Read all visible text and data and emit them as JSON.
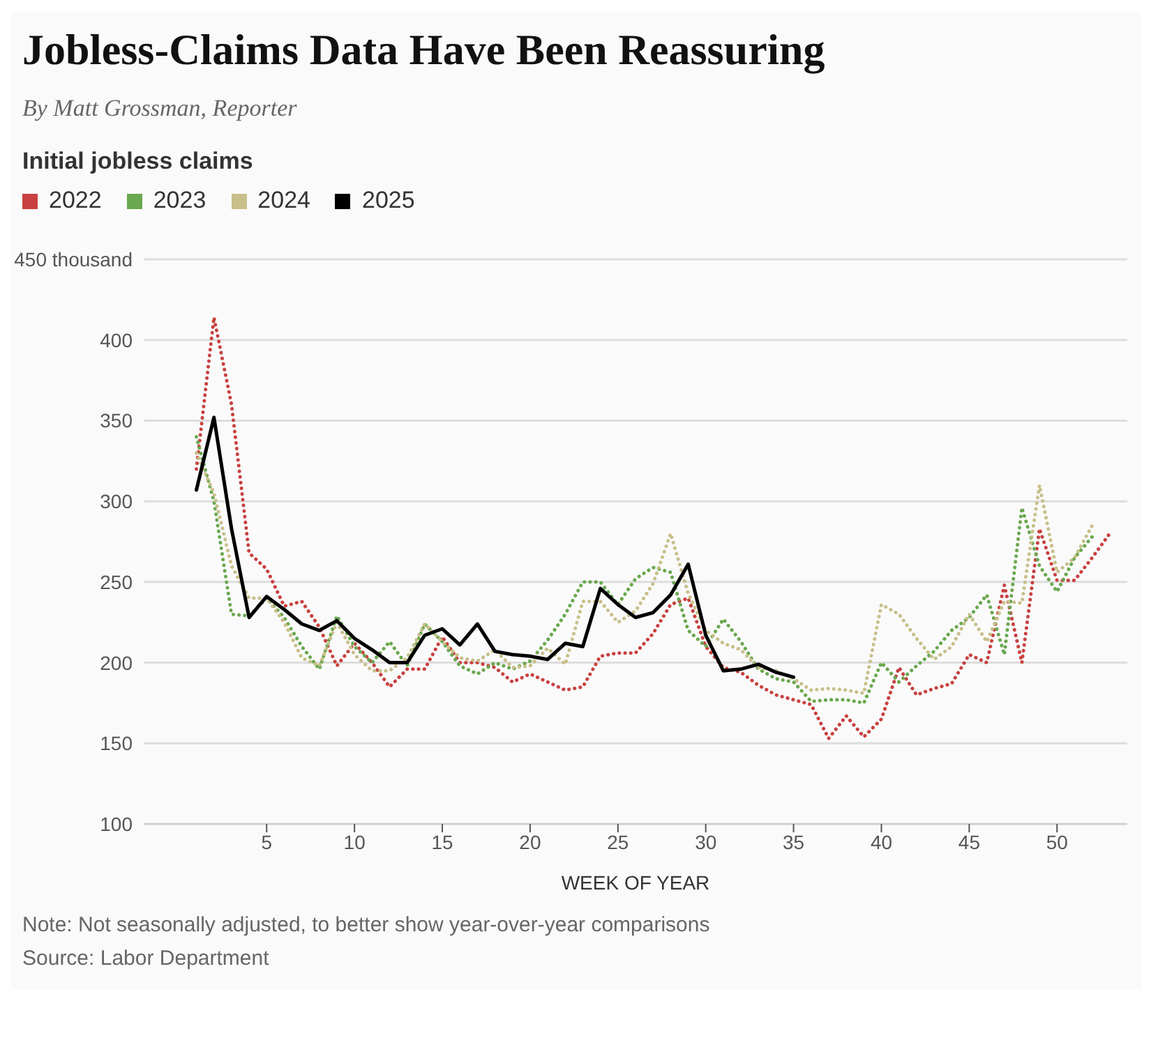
{
  "chart_data": {
    "type": "line",
    "title": "Jobless-Claims Data Have Been Reassuring",
    "subtitle": "By Matt Grossman, Reporter",
    "ylabel": "Initial jobless claims",
    "xlabel": "WEEK OF YEAR",
    "annotations": [
      "Note: Not seasonally adjusted, to better show year-over-year comparisons",
      "Source: Labor Department"
    ],
    "x": [
      1,
      2,
      3,
      4,
      5,
      6,
      7,
      8,
      9,
      10,
      11,
      12,
      13,
      14,
      15,
      16,
      17,
      18,
      19,
      20,
      21,
      22,
      23,
      24,
      25,
      26,
      27,
      28,
      29,
      30,
      31,
      32,
      33,
      34,
      35,
      36,
      37,
      38,
      39,
      40,
      41,
      42,
      43,
      44,
      45,
      46,
      47,
      48,
      49,
      50,
      51,
      52,
      53
    ],
    "series": [
      {
        "name": "2022",
        "color": "#c94040",
        "line_style": "dotted",
        "values": [
          320,
          414,
          360,
          268,
          258,
          235,
          238,
          222,
          198,
          212,
          200,
          185,
          196,
          196,
          216,
          200,
          200,
          197,
          188,
          193,
          188,
          183,
          185,
          204,
          206,
          206,
          218,
          236,
          240,
          210,
          197,
          194,
          186,
          180,
          177,
          174,
          153,
          167,
          154,
          165,
          197,
          180,
          184,
          187,
          205,
          200,
          248,
          200,
          283,
          251,
          251,
          265,
          280
        ]
      },
      {
        "name": "2023",
        "color": "#6aa84f",
        "line_style": "dotted",
        "values": [
          340,
          300,
          230,
          229,
          240,
          228,
          210,
          196,
          229,
          210,
          200,
          213,
          198,
          224,
          213,
          198,
          193,
          200,
          196,
          201,
          214,
          230,
          250,
          250,
          236,
          252,
          259,
          256,
          220,
          210,
          227,
          213,
          196,
          190,
          188,
          176,
          177,
          177,
          175,
          200,
          188,
          198,
          207,
          220,
          228,
          242,
          205,
          296,
          260,
          244,
          265,
          278,
          null
        ]
      },
      {
        "name": "2024",
        "color": "#c8bf8a",
        "line_style": "dotted",
        "values": [
          330,
          305,
          260,
          240,
          240,
          225,
          203,
          198,
          225,
          205,
          195,
          195,
          203,
          224,
          213,
          203,
          201,
          208,
          197,
          198,
          209,
          199,
          238,
          238,
          225,
          232,
          249,
          280,
          243,
          220,
          212,
          208,
          197,
          195,
          190,
          183,
          184,
          183,
          181,
          236,
          230,
          215,
          202,
          210,
          230,
          213,
          238,
          237,
          310,
          256,
          265,
          285,
          null
        ]
      },
      {
        "name": "2025",
        "color": "#000000",
        "line_style": "solid",
        "values": [
          307,
          352,
          283,
          228,
          241,
          233,
          224,
          220,
          226,
          215,
          208,
          200,
          200,
          217,
          221,
          211,
          224,
          207,
          205,
          204,
          202,
          212,
          210,
          246,
          236,
          228,
          231,
          242,
          261,
          217,
          195,
          196,
          199,
          194,
          191,
          null,
          null,
          null,
          null,
          null,
          null,
          null,
          null,
          null,
          null,
          null,
          null,
          null,
          null,
          null,
          null,
          null,
          null
        ]
      }
    ],
    "xlim": [
      -2,
      54
    ],
    "xticks": [
      5,
      10,
      15,
      20,
      25,
      30,
      35,
      40,
      45,
      50
    ],
    "ylim": [
      100,
      450
    ],
    "yticks": [
      100,
      150,
      200,
      250,
      300,
      350,
      400,
      {
        "value": 450,
        "label": "450 thousand"
      }
    ],
    "grid": "y",
    "legend": "top left",
    "marker": "none"
  }
}
